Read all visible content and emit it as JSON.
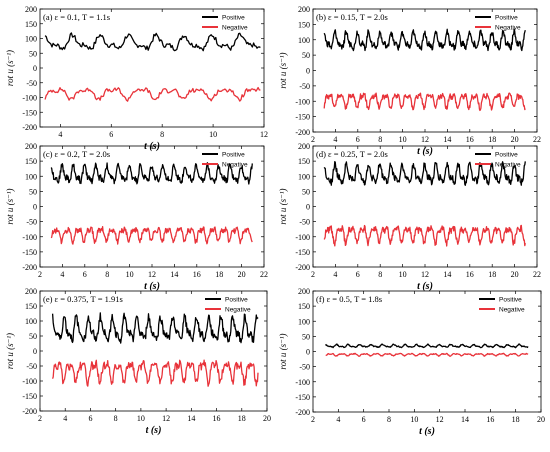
{
  "chart_data": [
    {
      "type": "line",
      "title": "(a) ε = 0.1, T = 1.1s",
      "xlabel": "t (s)",
      "ylabel": "rot u (s⁻¹)",
      "xlim": [
        3.2,
        12
      ],
      "ylim": [
        -200,
        200
      ],
      "xticks": [
        4,
        6,
        8,
        10,
        12
      ],
      "yticks": [
        -200,
        -150,
        -100,
        -50,
        0,
        50,
        100,
        150,
        200
      ],
      "legend": "top-right",
      "period": 1.1,
      "series": [
        {
          "name": "Positive",
          "color": "#000000",
          "mean": 85,
          "amplitude": 30
        },
        {
          "name": "Negative",
          "color": "#e8333a",
          "mean": -85,
          "amplitude": 25
        }
      ]
    },
    {
      "type": "line",
      "title": "(b) ε = 0.15, T = 2.0s",
      "xlabel": "t (s)",
      "ylabel": "rot u (s⁻¹)",
      "xlim": [
        2,
        22
      ],
      "ylim": [
        -200,
        200
      ],
      "xticks": [
        2,
        4,
        6,
        8,
        10,
        12,
        14,
        16,
        18,
        20,
        22
      ],
      "yticks": [
        -200,
        -150,
        -100,
        -50,
        0,
        50,
        100,
        150,
        200
      ],
      "legend": "top-right",
      "period": 1.0,
      "series": [
        {
          "name": "Positive",
          "color": "#000000",
          "mean": 95,
          "amplitude": 35
        },
        {
          "name": "Negative",
          "color": "#e8333a",
          "mean": -95,
          "amplitude": 30
        }
      ]
    },
    {
      "type": "line",
      "title": "(c) ε = 0.2, T = 2.0s",
      "xlabel": "t (s)",
      "ylabel": "rot u (s⁻¹)",
      "xlim": [
        2,
        22
      ],
      "ylim": [
        -200,
        200
      ],
      "xticks": [
        2,
        4,
        6,
        8,
        10,
        12,
        14,
        16,
        18,
        20,
        22
      ],
      "yticks": [
        -200,
        -150,
        -100,
        -50,
        0,
        50,
        100,
        150,
        200
      ],
      "legend": "top-right",
      "period": 1.0,
      "series": [
        {
          "name": "Positive",
          "color": "#000000",
          "mean": 105,
          "amplitude": 35
        },
        {
          "name": "Negative",
          "color": "#e8333a",
          "mean": -90,
          "amplitude": 30
        }
      ]
    },
    {
      "type": "line",
      "title": "(d) ε = 0.25, T = 2.0s",
      "xlabel": "t (s)",
      "ylabel": "rot u (s⁻¹)",
      "xlim": [
        2,
        22
      ],
      "ylim": [
        -200,
        200
      ],
      "xticks": [
        2,
        4,
        6,
        8,
        10,
        12,
        14,
        16,
        18,
        20,
        22
      ],
      "yticks": [
        -200,
        -150,
        -100,
        -50,
        0,
        50,
        100,
        150,
        200
      ],
      "legend": "top-right",
      "period": 1.0,
      "series": [
        {
          "name": "Positive",
          "color": "#000000",
          "mean": 105,
          "amplitude": 40
        },
        {
          "name": "Negative",
          "color": "#e8333a",
          "mean": -90,
          "amplitude": 35
        }
      ]
    },
    {
      "type": "line",
      "title": "(e) ε = 0.375, T = 1.91s",
      "xlabel": "t (s)",
      "ylabel": "rot u (s⁻¹)",
      "xlim": [
        2,
        20
      ],
      "ylim": [
        -200,
        200
      ],
      "xticks": [
        2,
        4,
        6,
        8,
        10,
        12,
        14,
        16,
        18,
        20
      ],
      "yticks": [
        -200,
        -150,
        -100,
        -50,
        0,
        50,
        100,
        150,
        200
      ],
      "legend": "top-right",
      "period": 0.955,
      "series": [
        {
          "name": "Positive",
          "color": "#000000",
          "mean": 70,
          "amplitude": 50
        },
        {
          "name": "Negative",
          "color": "#e8333a",
          "mean": -65,
          "amplitude": 45
        }
      ]
    },
    {
      "type": "line",
      "title": "(f) ε = 0.5, T = 1.8s",
      "xlabel": "t (s)",
      "ylabel": "rot u (s⁻¹)",
      "xlim": [
        2,
        20
      ],
      "ylim": [
        -200,
        200
      ],
      "xticks": [
        2,
        4,
        6,
        8,
        10,
        12,
        14,
        16,
        18,
        20
      ],
      "yticks": [
        -200,
        -150,
        -100,
        -50,
        0,
        50,
        100,
        150,
        200
      ],
      "legend": "top-right",
      "period": 0.9,
      "series": [
        {
          "name": "Positive",
          "color": "#000000",
          "mean": 18,
          "amplitude": 6
        },
        {
          "name": "Negative",
          "color": "#e8333a",
          "mean": -10,
          "amplitude": 5
        }
      ]
    }
  ]
}
